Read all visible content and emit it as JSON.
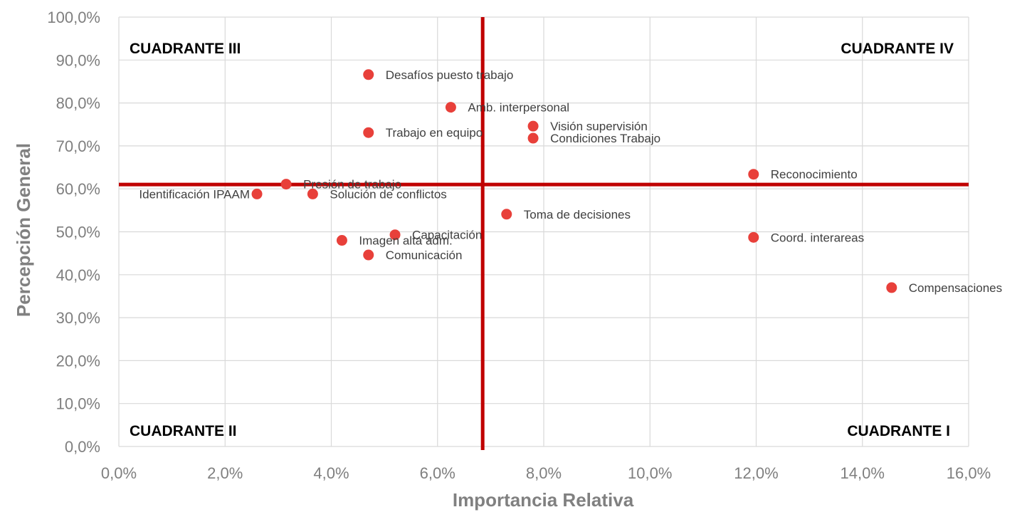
{
  "chart_data": {
    "type": "scatter",
    "xlabel": "Importancia Relativa",
    "ylabel": "Percepción General",
    "xlim": [
      0,
      16
    ],
    "ylim": [
      0,
      100
    ],
    "x_ticks": [
      "0,0%",
      "2,0%",
      "4,0%",
      "6,0%",
      "8,0%",
      "10,0%",
      "12,0%",
      "14,0%",
      "16,0%"
    ],
    "y_ticks": [
      "0,0%",
      "10,0%",
      "20,0%",
      "30,0%",
      "40,0%",
      "50,0%",
      "60,0%",
      "70,0%",
      "80,0%",
      "90,0%",
      "100,0%"
    ],
    "grid": true,
    "marker_color": "#e8403a",
    "reference_line_color": "#c00000",
    "reference_lines": {
      "x": 6.85,
      "y": 61
    },
    "quadrants": [
      {
        "label": "CUADRANTE III",
        "position": "top-left"
      },
      {
        "label": "CUADRANTE IV",
        "position": "top-right"
      },
      {
        "label": "CUADRANTE II",
        "position": "bottom-left"
      },
      {
        "label": "CUADRANTE I",
        "position": "bottom-right"
      }
    ],
    "points": [
      {
        "label": "Desafíos puesto trabajo",
        "x": 4.7,
        "y": 86.6
      },
      {
        "label": "Amb. interpersonal",
        "x": 6.25,
        "y": 79.0
      },
      {
        "label": "Trabajo en equipo",
        "x": 4.7,
        "y": 73.1
      },
      {
        "label": "Visión supervisión",
        "x": 7.8,
        "y": 74.6
      },
      {
        "label": "Condiciones Trabajo",
        "x": 7.8,
        "y": 71.8
      },
      {
        "label": "Reconocimiento",
        "x": 11.95,
        "y": 63.4
      },
      {
        "label": "Presión de trabajo",
        "x": 3.15,
        "y": 61.1
      },
      {
        "label": "Identificación IPAAM",
        "x": 2.6,
        "y": 58.8
      },
      {
        "label": "Solución de conflictos",
        "x": 3.65,
        "y": 58.8
      },
      {
        "label": "Toma de decisiones",
        "x": 7.3,
        "y": 54.1
      },
      {
        "label": "Capacitación",
        "x": 5.2,
        "y": 49.3
      },
      {
        "label": "Imagen alta adm.",
        "x": 4.2,
        "y": 48.0
      },
      {
        "label": "Coord. interareas",
        "x": 11.95,
        "y": 48.7
      },
      {
        "label": "Comunicación",
        "x": 4.7,
        "y": 44.6
      },
      {
        "label": "Compensaciones",
        "x": 14.55,
        "y": 37.0
      }
    ]
  }
}
